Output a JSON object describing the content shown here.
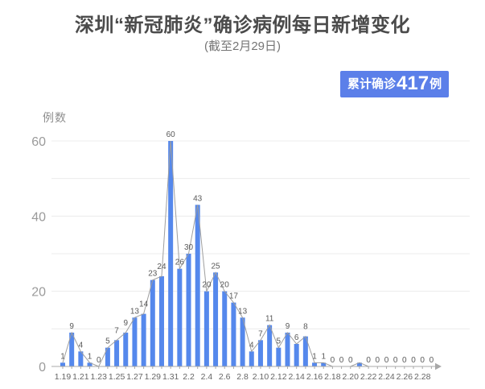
{
  "header": {
    "title": "深圳“新冠肺炎”确诊病例每日新增变化",
    "subtitle": "(截至2月29日)"
  },
  "badge": {
    "prefix": "累计确诊",
    "number": "417",
    "suffix": "例",
    "bg_color": "#5b7fe9",
    "text_color": "#ffffff"
  },
  "chart_data": {
    "type": "bar",
    "title": "深圳“新冠肺炎”确诊病例每日新增变化",
    "subtitle": "(截至2月29日)",
    "ylabel": "例数",
    "xlabel": "",
    "categories": [
      "1.19",
      "1.20",
      "1.21",
      "1.22",
      "1.23",
      "1.24",
      "1.25",
      "1.26",
      "1.27",
      "1.28",
      "1.29",
      "1.30",
      "1.31",
      "2.1",
      "2.2",
      "2.3",
      "2.4",
      "2.5",
      "2.6",
      "2.7",
      "2.8",
      "2.9",
      "2.10",
      "2.11",
      "2.12",
      "2.13",
      "2.14",
      "2.15",
      "2.16",
      "2.17",
      "2.18",
      "2.19",
      "2.20",
      "2.21",
      "2.22",
      "2.23",
      "2.24",
      "2.25",
      "2.26",
      "2.27",
      "2.28",
      "2.29"
    ],
    "values": [
      1,
      9,
      4,
      1,
      0,
      5,
      7,
      9,
      13,
      14,
      23,
      24,
      60,
      26,
      30,
      43,
      20,
      25,
      20,
      17,
      13,
      4,
      7,
      11,
      5,
      9,
      6,
      8,
      1,
      1,
      0,
      0,
      0,
      1,
      0,
      0,
      0,
      0,
      0,
      0,
      0,
      0
    ],
    "point_labels": [
      "1",
      "9",
      "4",
      "1",
      "0",
      "5",
      "7",
      "9",
      "13",
      "14",
      "23",
      "24",
      "60",
      "26",
      "30",
      "43",
      "20",
      "25",
      "20",
      "17",
      "13",
      "4",
      "7",
      "11",
      "5",
      "9",
      "6",
      "8",
      "1",
      "1",
      "0",
      "0",
      "0",
      "",
      "0",
      "0",
      "0",
      "0",
      "0",
      "0",
      "0",
      "0"
    ],
    "x_tick_labels": [
      "1.19",
      "1.21",
      "1.23",
      "1.25",
      "1.27",
      "1.29",
      "1.31",
      "2.2",
      "2.4",
      "2.6",
      "2.8",
      "2.10",
      "2.12",
      "2.14",
      "2.16",
      "2.18",
      "2.20",
      "2.22",
      "2.24",
      "2.26",
      "2.28"
    ],
    "x_tick_every": 2,
    "yticks": [
      0,
      20,
      40,
      60
    ],
    "ylim": [
      0,
      60
    ],
    "grid_interval": 10,
    "grid_on": true,
    "legend": "none",
    "line_overlay": true,
    "cumulative_total": 417,
    "bar_color": "#5588ec",
    "line_color": "#9e9e9e",
    "label_color": "#595959",
    "axis_color": "#a8a8a8",
    "grid_color": "#ececec",
    "tick_label_color": "#9b9b9b",
    "x_label_color": "#666666"
  }
}
